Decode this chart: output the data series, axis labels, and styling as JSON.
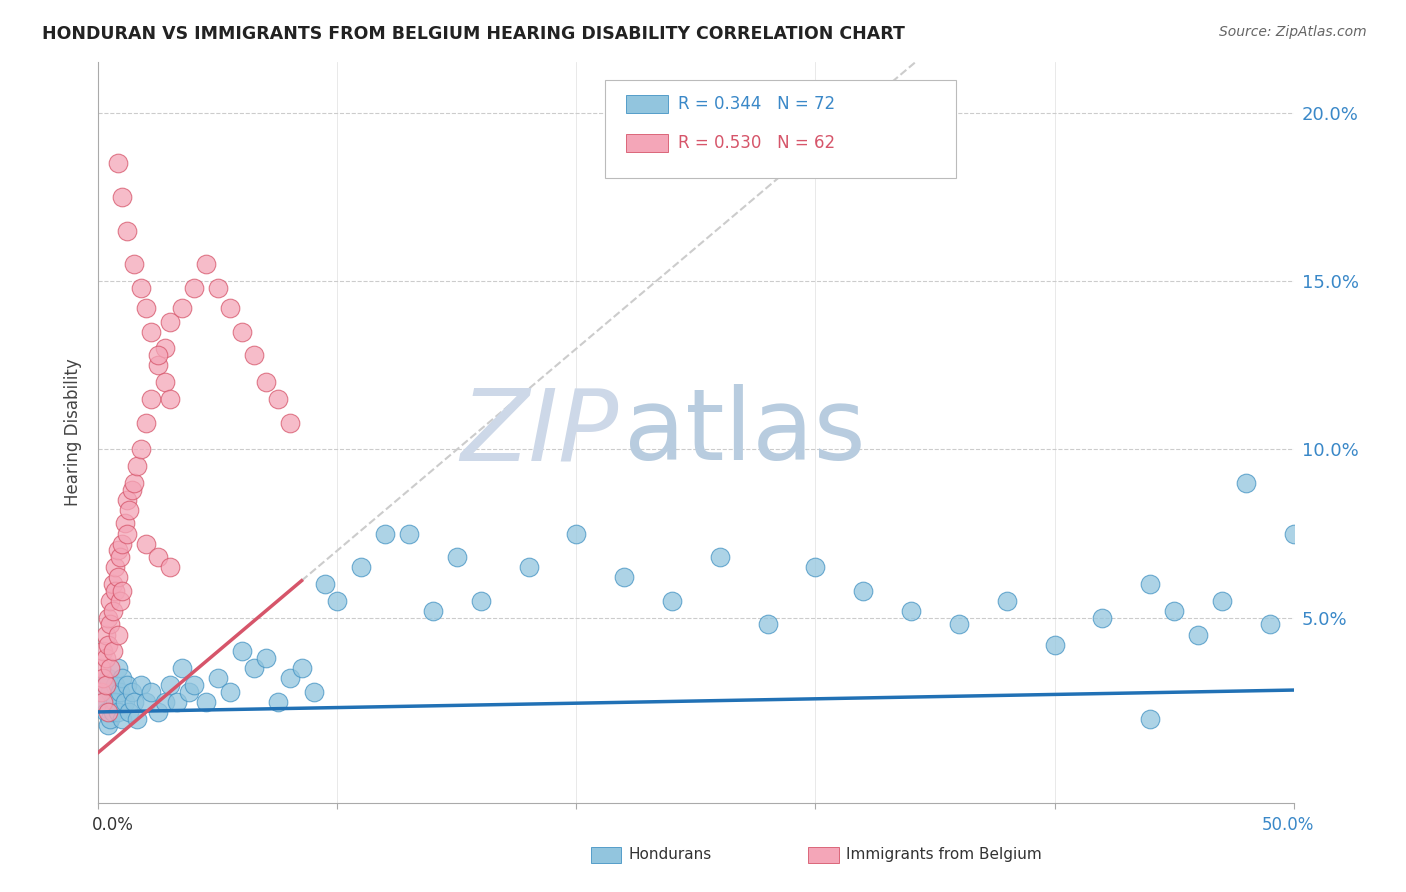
{
  "title": "HONDURAN VS IMMIGRANTS FROM BELGIUM HEARING DISABILITY CORRELATION CHART",
  "source": "Source: ZipAtlas.com",
  "ylabel": "Hearing Disability",
  "color_hondurans": "#92c5de",
  "color_belgium": "#f4a6b8",
  "color_edge_hondurans": "#4393c3",
  "color_edge_belgium": "#d6556a",
  "color_line_hondurans": "#2171b5",
  "color_line_belgium": "#d6556a",
  "color_title": "#222222",
  "color_source": "#666666",
  "color_watermark_zip": "#ccd8ea",
  "color_watermark_atlas": "#bccfdf",
  "xlim": [
    0.0,
    0.5
  ],
  "ylim": [
    -0.005,
    0.215
  ],
  "hon_slope": 0.013,
  "hon_intercept": 0.022,
  "bel_slope": 0.6,
  "bel_intercept": 0.01,
  "bel_line_end": 0.085,
  "hon_line_start": 0.0,
  "hon_line_end": 0.5,
  "hondurans_x": [
    0.001,
    0.002,
    0.003,
    0.003,
    0.004,
    0.004,
    0.005,
    0.005,
    0.006,
    0.006,
    0.007,
    0.007,
    0.008,
    0.008,
    0.009,
    0.01,
    0.01,
    0.011,
    0.012,
    0.013,
    0.014,
    0.015,
    0.016,
    0.018,
    0.02,
    0.022,
    0.025,
    0.028,
    0.03,
    0.033,
    0.035,
    0.038,
    0.04,
    0.045,
    0.05,
    0.055,
    0.06,
    0.065,
    0.07,
    0.075,
    0.08,
    0.085,
    0.09,
    0.095,
    0.1,
    0.11,
    0.12,
    0.13,
    0.14,
    0.15,
    0.16,
    0.18,
    0.2,
    0.22,
    0.24,
    0.26,
    0.28,
    0.3,
    0.32,
    0.34,
    0.36,
    0.38,
    0.4,
    0.42,
    0.44,
    0.45,
    0.46,
    0.47,
    0.48,
    0.49,
    0.5,
    0.44
  ],
  "hondurans_y": [
    0.028,
    0.025,
    0.03,
    0.022,
    0.032,
    0.018,
    0.028,
    0.02,
    0.025,
    0.022,
    0.03,
    0.025,
    0.022,
    0.035,
    0.028,
    0.032,
    0.02,
    0.025,
    0.03,
    0.022,
    0.028,
    0.025,
    0.02,
    0.03,
    0.025,
    0.028,
    0.022,
    0.025,
    0.03,
    0.025,
    0.035,
    0.028,
    0.03,
    0.025,
    0.032,
    0.028,
    0.04,
    0.035,
    0.038,
    0.025,
    0.032,
    0.035,
    0.028,
    0.06,
    0.055,
    0.065,
    0.075,
    0.075,
    0.052,
    0.068,
    0.055,
    0.065,
    0.075,
    0.062,
    0.055,
    0.068,
    0.048,
    0.065,
    0.058,
    0.052,
    0.048,
    0.055,
    0.042,
    0.05,
    0.06,
    0.052,
    0.045,
    0.055,
    0.09,
    0.048,
    0.075,
    0.02
  ],
  "belgium_x": [
    0.001,
    0.001,
    0.002,
    0.002,
    0.002,
    0.003,
    0.003,
    0.003,
    0.004,
    0.004,
    0.004,
    0.005,
    0.005,
    0.005,
    0.006,
    0.006,
    0.006,
    0.007,
    0.007,
    0.008,
    0.008,
    0.008,
    0.009,
    0.009,
    0.01,
    0.01,
    0.011,
    0.012,
    0.012,
    0.013,
    0.014,
    0.015,
    0.016,
    0.018,
    0.02,
    0.022,
    0.025,
    0.028,
    0.03,
    0.035,
    0.04,
    0.045,
    0.05,
    0.055,
    0.06,
    0.065,
    0.07,
    0.075,
    0.08,
    0.02,
    0.025,
    0.03,
    0.008,
    0.01,
    0.012,
    0.015,
    0.018,
    0.02,
    0.022,
    0.025,
    0.028,
    0.03
  ],
  "belgium_y": [
    0.035,
    0.028,
    0.04,
    0.032,
    0.025,
    0.045,
    0.038,
    0.03,
    0.05,
    0.042,
    0.022,
    0.055,
    0.048,
    0.035,
    0.06,
    0.052,
    0.04,
    0.058,
    0.065,
    0.07,
    0.062,
    0.045,
    0.068,
    0.055,
    0.072,
    0.058,
    0.078,
    0.075,
    0.085,
    0.082,
    0.088,
    0.09,
    0.095,
    0.1,
    0.108,
    0.115,
    0.125,
    0.13,
    0.138,
    0.142,
    0.148,
    0.155,
    0.148,
    0.142,
    0.135,
    0.128,
    0.12,
    0.115,
    0.108,
    0.072,
    0.068,
    0.065,
    0.185,
    0.175,
    0.165,
    0.155,
    0.148,
    0.142,
    0.135,
    0.128,
    0.12,
    0.115
  ]
}
